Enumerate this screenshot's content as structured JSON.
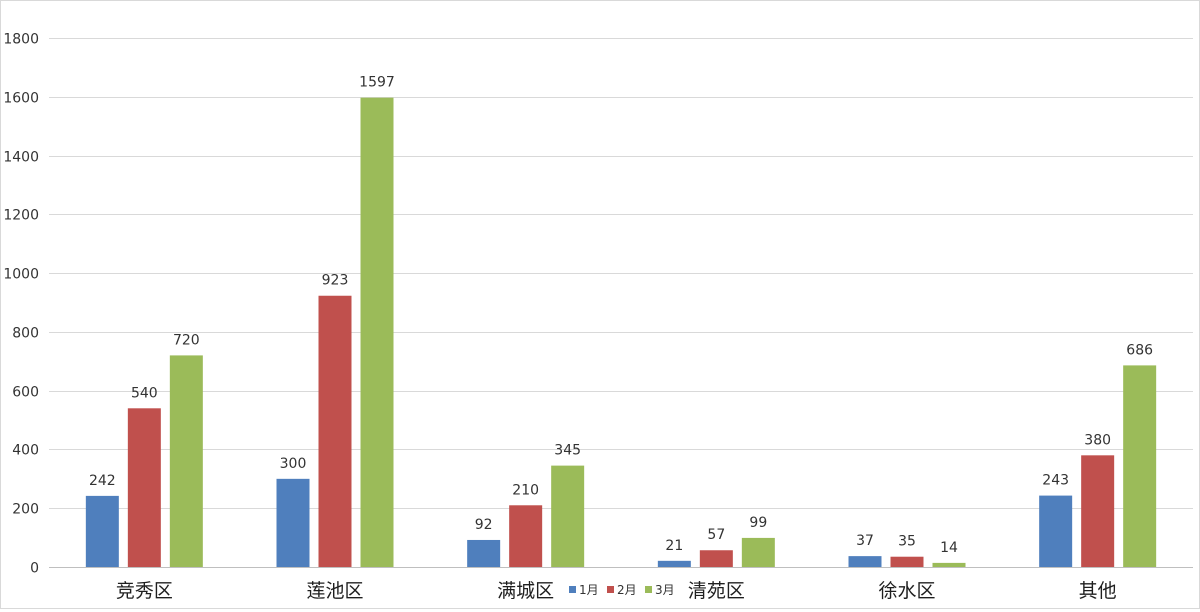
{
  "chart_data": {
    "type": "bar",
    "title": "",
    "xlabel": "",
    "ylabel": "",
    "categories": [
      "竞秀区",
      "莲池区",
      "满城区",
      "清苑区",
      "徐水区",
      "其他"
    ],
    "series": [
      {
        "name": "1月",
        "color": "#4f7fbd",
        "values": [
          242,
          300,
          92,
          21,
          37,
          243
        ]
      },
      {
        "name": "2月",
        "color": "#c0504d",
        "values": [
          540,
          923,
          210,
          57,
          35,
          380
        ]
      },
      {
        "name": "3月",
        "color": "#9bbb59",
        "values": [
          720,
          1597,
          345,
          99,
          14,
          686
        ]
      }
    ],
    "ylim": [
      0,
      1800
    ],
    "yticks": [
      0,
      200,
      400,
      600,
      800,
      1000,
      1200,
      1400,
      1600,
      1800
    ],
    "grid": true,
    "legend_position": "bottom-center"
  }
}
